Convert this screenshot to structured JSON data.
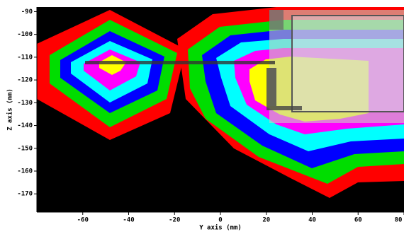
{
  "chart_data": {
    "type": "contour",
    "x_label": "Y axis (mm)",
    "y_label": "Z axis (mm)",
    "xlim": [
      -80,
      80
    ],
    "xticks": [
      -60,
      -40,
      -20,
      0,
      20,
      40,
      60,
      80
    ],
    "ylim": [
      -178,
      -88
    ],
    "yticks": [
      -90,
      -100,
      -110,
      -120,
      -130,
      -140,
      -150,
      -160,
      -170
    ]
  }
}
